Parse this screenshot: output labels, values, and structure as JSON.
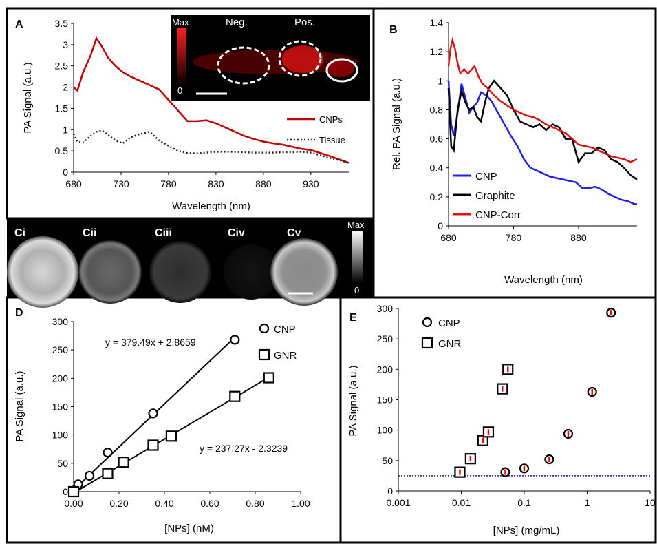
{
  "chart_data": [
    {
      "panel": "A",
      "type": "line",
      "xlabel": "Wavelength (nm)",
      "ylabel": "PA Signal (a.u.)",
      "xlim": [
        680,
        970
      ],
      "ylim": [
        0,
        3.5
      ],
      "xticks": [
        "680",
        "730",
        "780",
        "830",
        "880",
        "930"
      ],
      "yticks": [
        "0",
        "0.5",
        "1",
        "1.5",
        "2",
        "2.5",
        "3",
        "3.5"
      ],
      "legend_position": "bottom-right",
      "series": [
        {
          "name": "CNPs",
          "color": "#c00000",
          "style": "solid",
          "x": [
            680,
            684,
            690,
            698,
            704,
            710,
            716,
            724,
            732,
            740,
            750,
            760,
            770,
            780,
            790,
            800,
            810,
            820,
            830,
            840,
            850,
            860,
            870,
            880,
            890,
            900,
            910,
            920,
            930,
            940,
            950,
            960,
            970
          ],
          "y": [
            2.0,
            1.92,
            2.35,
            2.75,
            3.15,
            2.95,
            2.7,
            2.5,
            2.35,
            2.25,
            2.15,
            2.05,
            1.95,
            1.7,
            1.45,
            1.2,
            1.2,
            1.22,
            1.15,
            1.05,
            0.95,
            0.85,
            0.78,
            0.72,
            0.68,
            0.65,
            0.6,
            0.55,
            0.52,
            0.45,
            0.38,
            0.3,
            0.22
          ]
        },
        {
          "name": "Tissue",
          "color": "#222222",
          "style": "dotted",
          "x": [
            680,
            684,
            690,
            698,
            704,
            710,
            716,
            724,
            732,
            740,
            750,
            760,
            770,
            780,
            790,
            800,
            810,
            820,
            830,
            840,
            850,
            860,
            870,
            880,
            890,
            900,
            910,
            920,
            930,
            940,
            950,
            960,
            970
          ],
          "y": [
            0.9,
            0.72,
            0.7,
            0.85,
            0.95,
            0.98,
            0.88,
            0.75,
            0.68,
            0.82,
            0.9,
            0.95,
            0.75,
            0.62,
            0.5,
            0.45,
            0.44,
            0.46,
            0.48,
            0.48,
            0.48,
            0.47,
            0.46,
            0.46,
            0.46,
            0.47,
            0.47,
            0.48,
            0.46,
            0.4,
            0.33,
            0.28,
            0.22
          ]
        }
      ],
      "inset": {
        "labels": {
          "max": "Max",
          "zero": "0",
          "neg": "Neg.",
          "pos": "Pos."
        }
      }
    },
    {
      "panel": "B",
      "type": "line",
      "xlabel": "Wavelength (nm)",
      "ylabel": "Rel. PA Signal (a.u.)",
      "xlim": [
        680,
        970
      ],
      "ylim": [
        0,
        1.4
      ],
      "xticks": [
        "680",
        "780",
        "880"
      ],
      "yticks": [
        "0",
        "0.2",
        "0.4",
        "0.6",
        "0.8",
        "1",
        "1.2",
        "1.4"
      ],
      "legend_position": "bottom-left",
      "series": [
        {
          "name": "CNP",
          "color": "#1f1fe6",
          "x": [
            680,
            684,
            688,
            694,
            700,
            706,
            712,
            718,
            724,
            730,
            738,
            746,
            756,
            766,
            776,
            786,
            796,
            806,
            816,
            826,
            836,
            846,
            856,
            866,
            876,
            886,
            896,
            906,
            916,
            926,
            936,
            946,
            956,
            966,
            970
          ],
          "y": [
            1.0,
            0.7,
            0.62,
            0.78,
            0.98,
            0.88,
            0.78,
            0.82,
            0.85,
            0.92,
            0.9,
            0.86,
            0.78,
            0.7,
            0.62,
            0.55,
            0.46,
            0.4,
            0.38,
            0.36,
            0.34,
            0.33,
            0.32,
            0.31,
            0.3,
            0.26,
            0.26,
            0.27,
            0.25,
            0.22,
            0.2,
            0.18,
            0.17,
            0.15,
            0.15
          ]
        },
        {
          "name": "Graphite",
          "color": "#000000",
          "x": [
            680,
            684,
            688,
            694,
            700,
            706,
            712,
            718,
            724,
            730,
            736,
            742,
            750,
            760,
            770,
            780,
            790,
            800,
            810,
            820,
            830,
            840,
            850,
            860,
            870,
            880,
            890,
            900,
            910,
            920,
            930,
            940,
            950,
            960,
            970
          ],
          "y": [
            0.95,
            0.55,
            0.52,
            0.8,
            0.93,
            0.85,
            0.8,
            0.82,
            0.75,
            0.72,
            0.85,
            0.95,
            1.0,
            0.95,
            0.9,
            0.8,
            0.72,
            0.7,
            0.68,
            0.7,
            0.66,
            0.7,
            0.68,
            0.6,
            0.6,
            0.44,
            0.5,
            0.5,
            0.54,
            0.52,
            0.46,
            0.44,
            0.4,
            0.35,
            0.32
          ]
        },
        {
          "name": "CNP-Corr",
          "color": "#e01010",
          "x": [
            680,
            683,
            686,
            690,
            694,
            698,
            704,
            710,
            716,
            720,
            726,
            732,
            740,
            750,
            760,
            770,
            780,
            790,
            800,
            810,
            820,
            830,
            840,
            850,
            860,
            870,
            880,
            890,
            900,
            910,
            920,
            930,
            940,
            950,
            960,
            970
          ],
          "y": [
            1.1,
            1.22,
            1.28,
            1.22,
            1.12,
            1.05,
            1.08,
            1.05,
            1.08,
            1.1,
            1.03,
            0.98,
            0.95,
            0.9,
            0.86,
            0.83,
            0.8,
            0.78,
            0.76,
            0.75,
            0.73,
            0.7,
            0.68,
            0.66,
            0.64,
            0.6,
            0.56,
            0.55,
            0.54,
            0.52,
            0.5,
            0.48,
            0.47,
            0.46,
            0.44,
            0.46
          ]
        }
      ]
    },
    {
      "panel": "C",
      "type": "image_strip",
      "labels": [
        "Ci",
        "Cii",
        "Ciii",
        "Civ",
        "Cv"
      ],
      "colorbar": {
        "max": "Max",
        "zero": "0"
      }
    },
    {
      "panel": "D",
      "type": "scatter",
      "xlabel": "[NPs] (nM)",
      "ylabel": "PA Signal (a.u.)",
      "xlim": [
        0,
        1.0
      ],
      "ylim": [
        0,
        300
      ],
      "xticks": [
        "0.00",
        "0.20",
        "0.40",
        "0.60",
        "0.80",
        "1.00"
      ],
      "yticks": [
        "0",
        "50",
        "100",
        "150",
        "200",
        "250",
        "300"
      ],
      "legend_position": "top-right",
      "series": [
        {
          "name": "CNP",
          "marker": "circle",
          "x": [
            0.0,
            0.02,
            0.07,
            0.15,
            0.35,
            0.71
          ],
          "y": [
            2,
            13,
            28,
            69,
            138,
            268
          ]
        },
        {
          "name": "GNR",
          "marker": "square",
          "x": [
            0.0,
            0.15,
            0.22,
            0.35,
            0.43,
            0.71,
            0.86
          ],
          "y": [
            0,
            32,
            52,
            82,
            98,
            168,
            201
          ]
        }
      ],
      "fits": [
        {
          "series": "CNP",
          "slope": 379.49,
          "intercept": 2.8659,
          "label": "y = 379.49x + 2.8659"
        },
        {
          "series": "GNR",
          "slope": 237.27,
          "intercept": -2.3239,
          "label": "y = 237.27x - 2.3239"
        }
      ]
    },
    {
      "panel": "E",
      "type": "scatter",
      "xscale": "log",
      "xlabel": "[NPs] (mg/mL)",
      "ylabel": "PA Signal (a.u.)",
      "xlim": [
        0.001,
        10
      ],
      "ylim": [
        0,
        300
      ],
      "xticks": [
        "0.001",
        "0.01",
        "0.1",
        "1",
        "10"
      ],
      "yticks": [
        "0",
        "50",
        "100",
        "150",
        "200",
        "250",
        "300"
      ],
      "legend_position": "top-left",
      "threshold": 25,
      "series": [
        {
          "name": "CNP",
          "marker": "circle",
          "x": [
            0.05,
            0.1,
            0.25,
            0.5,
            1.2,
            2.4
          ],
          "y": [
            31,
            37,
            52,
            94,
            163,
            293
          ]
        },
        {
          "name": "GNR",
          "marker": "square",
          "x": [
            0.0095,
            0.014,
            0.022,
            0.027,
            0.045,
            0.055
          ],
          "y": [
            31,
            53,
            83,
            97,
            168,
            200
          ]
        }
      ]
    }
  ],
  "panel_labels": [
    "A",
    "B",
    "D",
    "E"
  ],
  "colors": {
    "errorbar": "#ff0000",
    "threshold": "#1a1a8c"
  }
}
